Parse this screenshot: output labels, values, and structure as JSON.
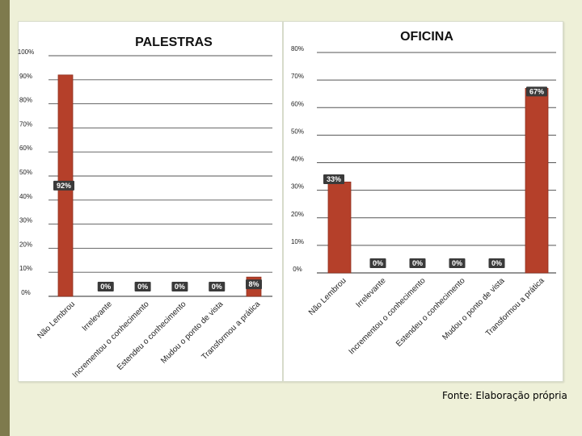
{
  "colors": {
    "bar": "#b5402a",
    "bar_highlight": "#c0452c",
    "grid": "#555555",
    "label_box": "#3a3a3a",
    "label_text": "#ffffff",
    "background": "#eef0d8",
    "side_stripe": "#7e7a4d"
  },
  "source_note": "Fonte: Elaboração própria",
  "chart_data": [
    {
      "type": "bar",
      "title": "PALESTRAS",
      "categories": [
        "Não Lembrou",
        "Irrelevante",
        "Incrementou o conhecimento",
        "Estendeu o conhecimento",
        "Mudou o ponto de vista",
        "Transformou a prática"
      ],
      "values": [
        92,
        0,
        0,
        0,
        0,
        8
      ],
      "data_labels": [
        "92%",
        "0%",
        "0%",
        "0%",
        "0%",
        "8%"
      ],
      "y_ticks": [
        "0%",
        "10%",
        "20%",
        "30%",
        "40%",
        "50%",
        "60%",
        "70%",
        "80%",
        "90%",
        "100%"
      ],
      "ylim": [
        0,
        100
      ],
      "grid": true
    },
    {
      "type": "bar",
      "title": "OFICINA",
      "categories": [
        "Não Lembrou",
        "Irrelevante",
        "Incrementou o conhecimento",
        "Estendeu o conhecimento",
        "Mudou o ponto de vista",
        "Transformou a prática"
      ],
      "values": [
        33,
        0,
        0,
        0,
        0,
        67
      ],
      "data_labels": [
        "33%",
        "0%",
        "0%",
        "0%",
        "0%",
        "67%"
      ],
      "y_ticks": [
        "0%",
        "10%",
        "20%",
        "30%",
        "40%",
        "50%",
        "60%",
        "70%",
        "80%"
      ],
      "ylim": [
        0,
        80
      ],
      "grid": true
    }
  ]
}
